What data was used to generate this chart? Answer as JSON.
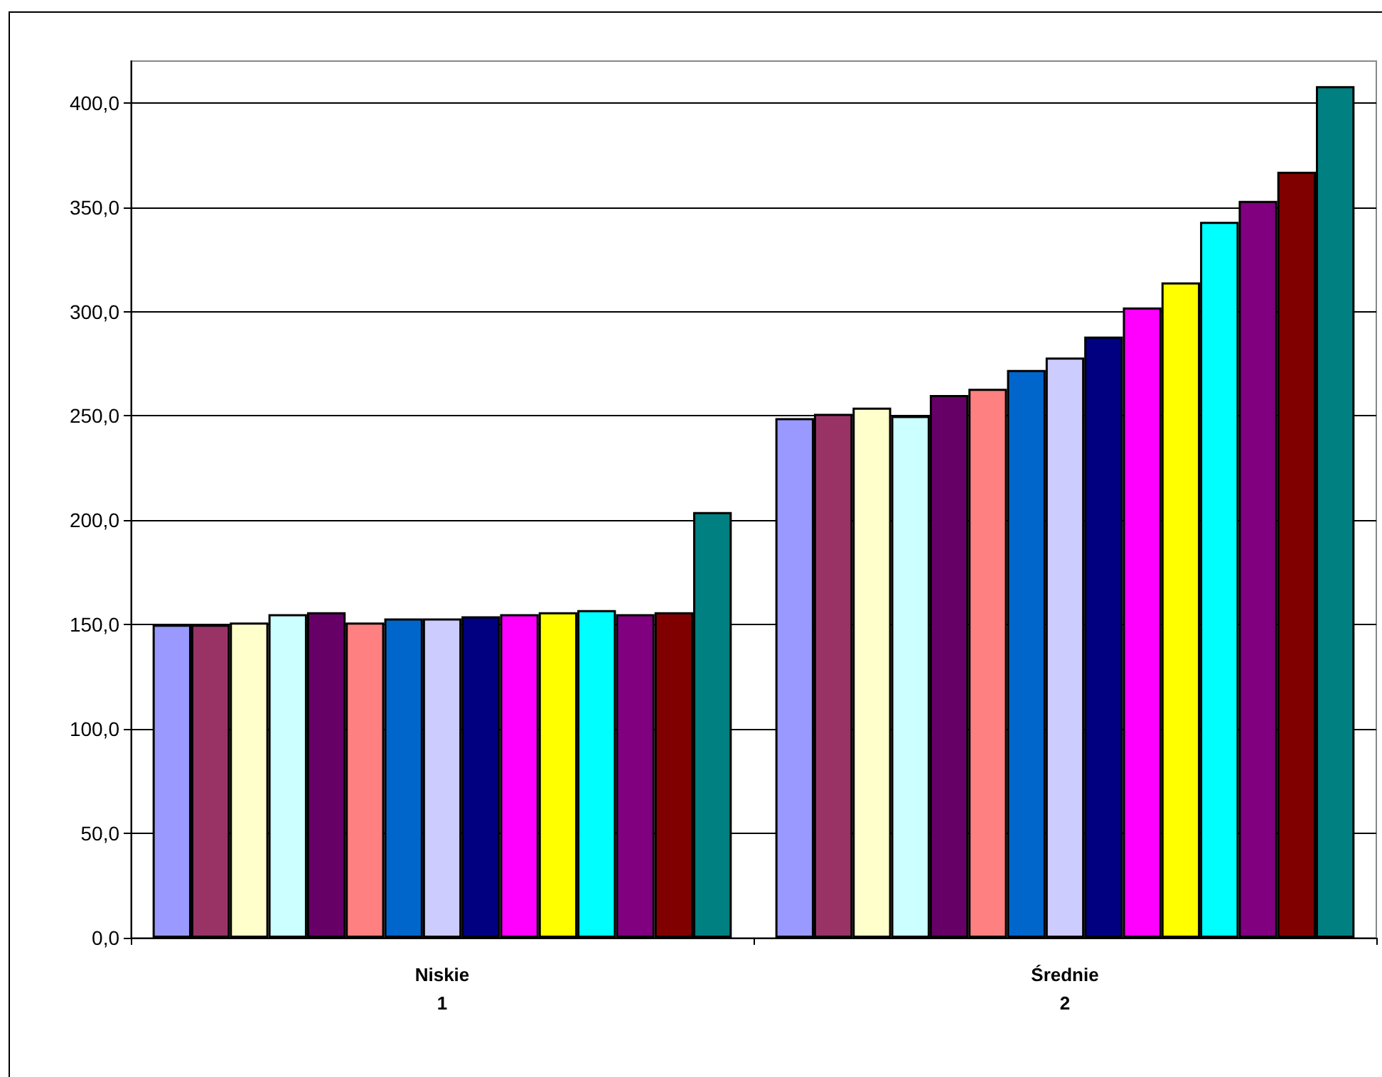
{
  "chart_data": {
    "type": "bar",
    "categories": [
      "Niskie",
      "Średnie"
    ],
    "annotations": [
      "1",
      "2"
    ],
    "series": [
      {
        "color": "#9999ff",
        "values": [
          150,
          249
        ]
      },
      {
        "color": "#993366",
        "values": [
          150,
          251
        ]
      },
      {
        "color": "#ffffcc",
        "values": [
          151,
          254
        ]
      },
      {
        "color": "#ccffff",
        "values": [
          155,
          250
        ]
      },
      {
        "color": "#660066",
        "values": [
          156,
          260
        ]
      },
      {
        "color": "#ff8080",
        "values": [
          151,
          263
        ]
      },
      {
        "color": "#0066cc",
        "values": [
          153,
          272
        ]
      },
      {
        "color": "#ccccff",
        "values": [
          153,
          278
        ]
      },
      {
        "color": "#000080",
        "values": [
          154,
          288
        ]
      },
      {
        "color": "#ff00ff",
        "values": [
          155,
          302
        ]
      },
      {
        "color": "#ffff00",
        "values": [
          156,
          314
        ]
      },
      {
        "color": "#00ffff",
        "values": [
          157,
          343
        ]
      },
      {
        "color": "#800080",
        "values": [
          155,
          353
        ]
      },
      {
        "color": "#800000",
        "values": [
          156,
          367
        ]
      },
      {
        "color": "#008080",
        "values": [
          204,
          408
        ]
      }
    ],
    "ylim": [
      0,
      420
    ],
    "yticks": [
      {
        "value": 0,
        "label": "0,0"
      },
      {
        "value": 50,
        "label": "50,0"
      },
      {
        "value": 100,
        "label": "100,0"
      },
      {
        "value": 150,
        "label": "150,0"
      },
      {
        "value": 200,
        "label": "200,0"
      },
      {
        "value": 250,
        "label": "250,0"
      },
      {
        "value": 300,
        "label": "300,0"
      },
      {
        "value": 350,
        "label": "350,0"
      },
      {
        "value": 400,
        "label": "400,0"
      }
    ],
    "grid": "y"
  }
}
